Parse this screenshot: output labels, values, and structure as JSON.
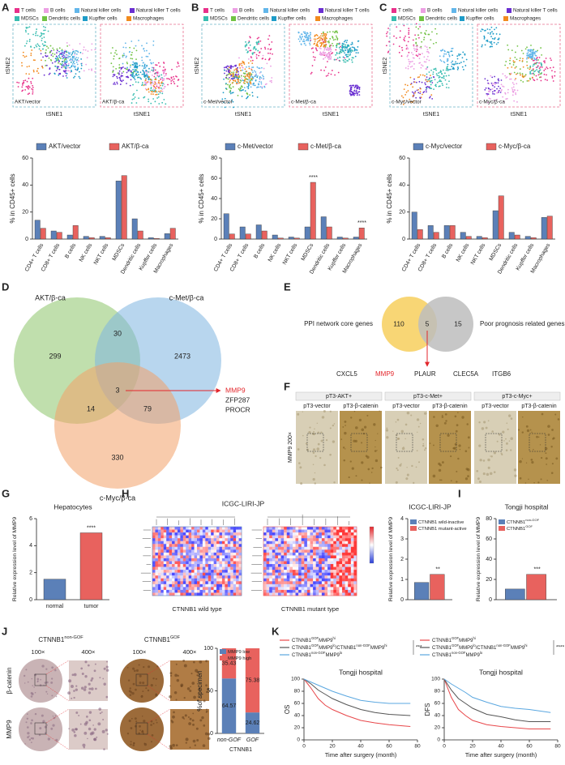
{
  "figure": {
    "panel_labels": [
      "A",
      "B",
      "C",
      "D",
      "E",
      "F",
      "G",
      "H",
      "I",
      "J",
      "K"
    ],
    "tsne": {
      "legend": [
        {
          "name": "T cells",
          "color": "#e8308a"
        },
        {
          "name": "B cells",
          "color": "#ec9fe3"
        },
        {
          "name": "Natural killer cells",
          "color": "#62b6ea"
        },
        {
          "name": "Natural killer T cells",
          "color": "#6a2fd1"
        },
        {
          "name": "MDSCs",
          "color": "#38bdb0"
        },
        {
          "name": "Dendritic cells",
          "color": "#71c244"
        },
        {
          "name": "Kupffer cells",
          "color": "#1e9cc8"
        },
        {
          "name": "Macrophages",
          "color": "#f28a1e"
        }
      ],
      "xlabel": "tSNE1",
      "ylabel": "tSNE2",
      "maps": [
        [
          "AKT/vector",
          "AKT/β-ca"
        ],
        [
          "c-Met/vector",
          "c-Met/β-ca"
        ],
        [
          "c-Myc/vector",
          "c-Myc/β-ca"
        ]
      ]
    },
    "venn_d": {
      "sets": [
        {
          "name": "AKT/β-ca",
          "color": "#8cc46a"
        },
        {
          "name": "c-Met/β-ca",
          "color": "#7db4e0"
        },
        {
          "name": "c-Myc/β-ca",
          "color": "#f3a067"
        }
      ],
      "counts": [
        299,
        30,
        2473,
        14,
        3,
        79,
        330
      ],
      "genes": [
        {
          "text": "MMP9",
          "color": "#e3262b"
        },
        {
          "text": "ZFP287",
          "color": "#222222"
        },
        {
          "text": "PROCR",
          "color": "#222222"
        }
      ]
    },
    "venn_e": {
      "sets": [
        {
          "name": "PPI network core genes",
          "color": "#f7cf5d"
        },
        {
          "name": "Poor prognosis related genes",
          "color": "#bdbdbd"
        }
      ],
      "counts": [
        110,
        5,
        15
      ],
      "genes": [
        {
          "text": "CXCL5",
          "color": "#222222"
        },
        {
          "text": "MMP9",
          "color": "#e3262b"
        },
        {
          "text": "PLAUR",
          "color": "#222222"
        },
        {
          "text": "CLEC5A",
          "color": "#222222"
        },
        {
          "text": "ITGB6",
          "color": "#222222"
        }
      ]
    },
    "ihc_f": {
      "stain": "MMP9 200×",
      "groups": [
        "pT3-AKT+",
        "pT3-c-Met+",
        "pT3-c-Myc+"
      ],
      "conditions": [
        "pT3-vector",
        "pT3-β-catenin"
      ]
    },
    "heatmap_h": {
      "title": "ICGC-LIRI-JP",
      "groups": [
        "CTNNB1 wild type",
        "CTNNB1 mutant type"
      ]
    },
    "ihc_j": {
      "groups": [
        [
          {
            "text": "CTNNB1"
          },
          {
            "text": "non-GOF",
            "sup": true
          }
        ],
        [
          {
            "text": "CTNNB1"
          },
          {
            "text": "GOF",
            "sup": true
          }
        ]
      ],
      "magnifications": [
        "100×",
        "400×"
      ],
      "stains": [
        "β-catenin",
        "MMP9"
      ]
    }
  },
  "chart_data": [
    {
      "type": "bar",
      "ylabel": "% in CD45+ cells",
      "categories": [
        "CD4+ T cells",
        "CD8+ T cells",
        "B cells",
        "NK cells",
        "NKT cells",
        "MDSCs",
        "Dendritic cells",
        "Kupffer cells",
        "Macrophages"
      ],
      "series": [
        {
          "name": "AKT/vector",
          "color": "#5b80b8",
          "values": [
            14,
            6,
            3,
            2,
            2,
            43,
            15,
            1,
            4
          ]
        },
        {
          "name": "AKT/β-ca",
          "color": "#e8625e",
          "values": [
            8,
            5,
            10,
            1,
            1,
            47,
            6,
            0.5,
            8
          ]
        }
      ],
      "ylim": [
        0,
        60
      ],
      "yticks": [
        0,
        20,
        40,
        60
      ],
      "annotations": []
    },
    {
      "type": "bar",
      "ylabel": "% in CD45+ cells",
      "categories": [
        "CD4+ T cells",
        "CD8+ T cells",
        "B cells",
        "NK cells",
        "NKT cells",
        "MDSCs",
        "Dendritic cells",
        "Kupffer cells",
        "Macrophages"
      ],
      "series": [
        {
          "name": "c-Met/vector",
          "color": "#5b80b8",
          "values": [
            25,
            12,
            14,
            4,
            2,
            12,
            22,
            2,
            2
          ]
        },
        {
          "name": "c-Met/β-ca",
          "color": "#e8625e",
          "values": [
            5,
            5,
            8,
            1,
            1,
            56,
            12,
            1,
            11
          ]
        }
      ],
      "ylim": [
        0,
        80
      ],
      "yticks": [
        0,
        20,
        40,
        60,
        80
      ],
      "annotations": [
        {
          "text": "****",
          "series": 1,
          "index": 5
        },
        {
          "text": "****",
          "series": 1,
          "index": 8
        }
      ]
    },
    {
      "type": "bar",
      "ylabel": "% in CD45+ cells",
      "categories": [
        "CD4+ T cells",
        "CD8+ T cells",
        "B cells",
        "NK cells",
        "NKT cells",
        "MDSCs",
        "Dendritic cells",
        "Kupffer cells",
        "Macrophages"
      ],
      "series": [
        {
          "name": "c-Myc/vector",
          "color": "#5b80b8",
          "values": [
            20,
            10,
            10,
            5,
            2,
            21,
            5,
            2,
            16
          ]
        },
        {
          "name": "c-Myc/β-ca",
          "color": "#e8625e",
          "values": [
            7,
            5,
            10,
            2,
            1,
            32,
            3,
            1,
            17
          ]
        }
      ],
      "ylim": [
        0,
        60
      ],
      "yticks": [
        0,
        20,
        40,
        60
      ],
      "annotations": []
    },
    {
      "type": "bar",
      "title": "Hepatocytes",
      "ylabel": "Relative expression level of MMP9",
      "categories": [
        "normal",
        "tumor"
      ],
      "values": [
        1.52,
        4.95
      ],
      "colors": [
        "#5b80b8",
        "#e8625e"
      ],
      "ylim": [
        0,
        6
      ],
      "yticks": [
        0,
        2,
        4,
        6
      ],
      "annotations": [
        {
          "text": "****",
          "index": 1
        }
      ]
    },
    {
      "type": "bar",
      "title": "ICGC-LIRI-JP",
      "ylabel": "Relative expression level of MMP9",
      "series": [
        {
          "name": [
            {
              "text": "CTNNB1 wild-inactive"
            }
          ],
          "color": "#5b80b8",
          "values": [
            0.85
          ]
        },
        {
          "name": [
            {
              "text": "CTNNB1 mutant-active"
            }
          ],
          "color": "#e8625e",
          "values": [
            1.25
          ]
        }
      ],
      "ylim": [
        0,
        4
      ],
      "yticks": [
        0,
        1,
        2,
        3,
        4
      ],
      "annotations": [
        {
          "text": "**",
          "series": 1,
          "index": 0
        }
      ]
    },
    {
      "type": "bar",
      "title": "Tongji hospital",
      "ylabel": "Relative expression level of MMP9",
      "series": [
        {
          "name": [
            {
              "text": "CTNNB1"
            },
            {
              "text": "non-GOF",
              "sup": true
            }
          ],
          "color": "#5b80b8",
          "values": [
            10.5
          ]
        },
        {
          "name": [
            {
              "text": "CTNNB1"
            },
            {
              "text": "GOF",
              "sup": true
            }
          ],
          "color": "#e8625e",
          "values": [
            25
          ]
        }
      ],
      "ylim": [
        0,
        80
      ],
      "yticks": [
        0,
        20,
        40,
        60,
        80
      ],
      "annotations": [
        {
          "text": "***",
          "series": 1,
          "index": 0
        }
      ]
    },
    {
      "type": "stacked_bar",
      "ylabel": "%of specimen",
      "xlabel": "CTNNB1",
      "categories": [
        "non-GOF",
        "GOF"
      ],
      "series": [
        {
          "name": [
            {
              "text": "MMP9 low"
            }
          ],
          "color": "#5b80b8",
          "values": [
            64.57,
            24.62
          ]
        },
        {
          "name": [
            {
              "text": "MMP9 high"
            }
          ],
          "color": "#e8625e",
          "values": [
            35.43,
            75.38
          ]
        }
      ],
      "ylim": [
        0,
        100
      ],
      "yticks": [
        0,
        50,
        100
      ],
      "annotations": []
    },
    {
      "type": "line",
      "title": "Tongji hospital",
      "ylabel": "OS",
      "xlabel": "Time after surgery (month)",
      "significance": "***",
      "x": [
        0,
        5,
        10,
        15,
        20,
        30,
        40,
        50,
        60,
        75
      ],
      "series": [
        {
          "name": [
            {
              "text": "CTNNB1"
            },
            {
              "text": "GOF",
              "sup": true
            },
            {
              "text": "MMP9"
            },
            {
              "text": "hi",
              "sup": true
            }
          ],
          "color": "#e8474a",
          "values": [
            100,
            85,
            68,
            57,
            50,
            40,
            32,
            28,
            25,
            22
          ]
        },
        {
          "name": [
            {
              "text": "CTNNB1"
            },
            {
              "text": "GOF",
              "sup": true
            },
            {
              "text": "MMP9"
            },
            {
              "text": "lo",
              "sup": true
            },
            {
              "text": "/CTNNB1"
            },
            {
              "text": "non-GOF",
              "sup": true
            },
            {
              "text": "MMP9"
            },
            {
              "text": "hi",
              "sup": true
            }
          ],
          "color": "#555555",
          "values": [
            100,
            92,
            82,
            75,
            68,
            58,
            50,
            45,
            42,
            40
          ]
        },
        {
          "name": [
            {
              "text": "CTNNB1"
            },
            {
              "text": "non-GOF",
              "sup": true
            },
            {
              "text": "MMP9"
            },
            {
              "text": "lo",
              "sup": true
            }
          ],
          "color": "#5aa7e0",
          "values": [
            100,
            95,
            90,
            85,
            80,
            72,
            65,
            62,
            60,
            60
          ]
        }
      ],
      "xlim": [
        0,
        80
      ],
      "xticks": [
        0,
        20,
        40,
        60,
        80
      ],
      "ylim": [
        0,
        100
      ],
      "yticks": [
        0,
        20,
        40,
        60,
        80,
        100
      ]
    },
    {
      "type": "line",
      "title": "Tongji hospital",
      "ylabel": "DFS",
      "xlabel": "Time after surgery (month)",
      "significance": "****",
      "x": [
        0,
        5,
        10,
        15,
        20,
        30,
        40,
        50,
        60,
        75
      ],
      "series": [
        {
          "name": [
            {
              "text": "CTNNB1"
            },
            {
              "text": "GOF",
              "sup": true
            },
            {
              "text": "MMP9"
            },
            {
              "text": "hi",
              "sup": true
            }
          ],
          "color": "#e8474a",
          "values": [
            100,
            70,
            50,
            40,
            32,
            25,
            22,
            20,
            18,
            18
          ]
        },
        {
          "name": [
            {
              "text": "CTNNB1"
            },
            {
              "text": "GOF",
              "sup": true
            },
            {
              "text": "MMP9"
            },
            {
              "text": "lo",
              "sup": true
            },
            {
              "text": "/CTNNB1"
            },
            {
              "text": "non-GOF",
              "sup": true
            },
            {
              "text": "MMP9"
            },
            {
              "text": "hi",
              "sup": true
            }
          ],
          "color": "#555555",
          "values": [
            100,
            82,
            68,
            60,
            52,
            42,
            38,
            33,
            30,
            30
          ]
        },
        {
          "name": [
            {
              "text": "CTNNB1"
            },
            {
              "text": "non-GOF",
              "sup": true
            },
            {
              "text": "MMP9"
            },
            {
              "text": "lo",
              "sup": true
            }
          ],
          "color": "#5aa7e0",
          "values": [
            100,
            92,
            85,
            78,
            70,
            62,
            55,
            52,
            50,
            45
          ]
        }
      ],
      "xlim": [
        0,
        80
      ],
      "xticks": [
        0,
        20,
        40,
        60,
        80
      ],
      "ylim": [
        0,
        100
      ],
      "yticks": [
        0,
        20,
        40,
        60,
        80,
        100
      ]
    }
  ]
}
